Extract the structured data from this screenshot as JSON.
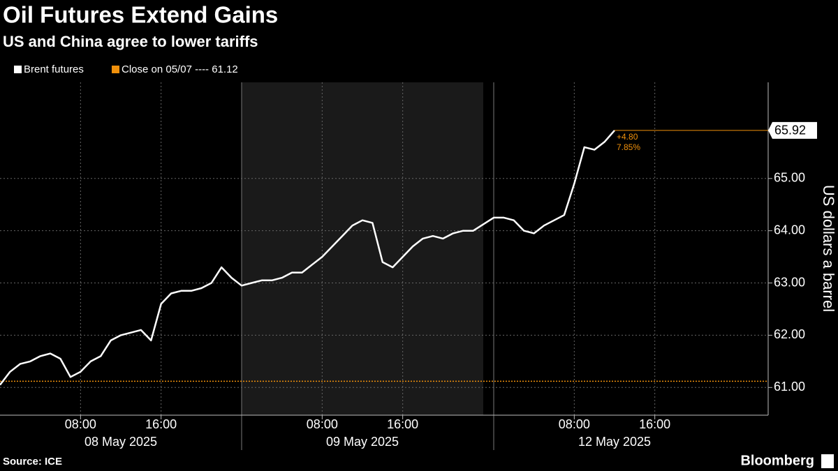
{
  "chart_data": {
    "type": "line",
    "title": "Oil Futures Extend Gains",
    "subtitle": "US and China agree to lower tariffs",
    "y_label": "US dollars a barrel",
    "source": "Source: ICE",
    "brand": "Bloomberg",
    "x": [
      "2025-05-08 00:00",
      "2025-05-08 01:00",
      "2025-05-08 02:00",
      "2025-05-08 03:00",
      "2025-05-08 04:00",
      "2025-05-08 05:00",
      "2025-05-08 06:00",
      "2025-05-08 07:00",
      "2025-05-08 08:00",
      "2025-05-08 09:00",
      "2025-05-08 10:00",
      "2025-05-08 11:00",
      "2025-05-08 12:00",
      "2025-05-08 13:00",
      "2025-05-08 14:00",
      "2025-05-08 15:00",
      "2025-05-08 16:00",
      "2025-05-08 17:00",
      "2025-05-08 18:00",
      "2025-05-08 19:00",
      "2025-05-08 20:00",
      "2025-05-08 21:00",
      "2025-05-08 22:00",
      "2025-05-08 23:00",
      "2025-05-09 00:00",
      "2025-05-09 01:00",
      "2025-05-09 02:00",
      "2025-05-09 03:00",
      "2025-05-09 04:00",
      "2025-05-09 05:00",
      "2025-05-09 06:00",
      "2025-05-09 07:00",
      "2025-05-09 08:00",
      "2025-05-09 09:00",
      "2025-05-09 10:00",
      "2025-05-09 11:00",
      "2025-05-09 12:00",
      "2025-05-09 13:00",
      "2025-05-09 14:00",
      "2025-05-09 15:00",
      "2025-05-09 16:00",
      "2025-05-09 17:00",
      "2025-05-09 18:00",
      "2025-05-09 19:00",
      "2025-05-09 20:00",
      "2025-05-09 21:00",
      "2025-05-09 22:00",
      "2025-05-09 23:00",
      "2025-05-12 00:00",
      "2025-05-12 01:00",
      "2025-05-12 02:00",
      "2025-05-12 03:00",
      "2025-05-12 04:00",
      "2025-05-12 05:00",
      "2025-05-12 06:00",
      "2025-05-12 07:00",
      "2025-05-12 08:00",
      "2025-05-12 09:00",
      "2025-05-12 10:00",
      "2025-05-12 11:00",
      "2025-05-12 12:00"
    ],
    "series": [
      {
        "name": "Brent futures",
        "color": "#ffffff",
        "values": [
          61.05,
          61.3,
          61.45,
          61.5,
          61.6,
          61.65,
          61.55,
          61.2,
          61.3,
          61.5,
          61.6,
          61.9,
          62.0,
          62.05,
          62.1,
          61.9,
          62.6,
          62.8,
          62.85,
          62.85,
          62.9,
          63.0,
          63.3,
          63.1,
          62.95,
          63.0,
          63.05,
          63.05,
          63.1,
          63.2,
          63.2,
          63.35,
          63.5,
          63.7,
          63.9,
          64.1,
          64.2,
          64.15,
          63.4,
          63.3,
          63.5,
          63.7,
          63.85,
          63.9,
          63.85,
          63.95,
          64.0,
          64.0,
          64.25,
          64.25,
          64.2,
          64.0,
          63.95,
          64.1,
          64.2,
          64.3,
          64.9,
          65.6,
          65.55,
          65.7,
          65.92
        ]
      }
    ],
    "reference": {
      "label": "Close on 05/07 ---- 61.12",
      "value": 61.12,
      "color": "#f0900b"
    },
    "annotations": [
      "+4.80",
      "7.85%"
    ],
    "ylim": [
      60.47,
      66.84
    ],
    "yticks": [
      {
        "value": 61,
        "label": "61.00"
      },
      {
        "value": 62,
        "label": "62.00"
      },
      {
        "value": 63,
        "label": "63.00"
      },
      {
        "value": 64,
        "label": "64.00"
      },
      {
        "value": 65,
        "label": "65.00"
      }
    ],
    "xticks": [
      {
        "value": "2025-05-08 08:00",
        "label": "08:00"
      },
      {
        "value": "2025-05-08 16:00",
        "label": "16:00"
      },
      {
        "value": "2025-05-09 08:00",
        "label": "08:00"
      },
      {
        "value": "2025-05-09 16:00",
        "label": "16:00"
      },
      {
        "value": "2025-05-12 08:00",
        "label": "08:00"
      },
      {
        "value": "2025-05-12 16:00",
        "label": "16:00"
      }
    ],
    "days": [
      {
        "value": "2025-05-08",
        "label": "08 May 2025"
      },
      {
        "value": "2025-05-09",
        "label": "09 May 2025"
      },
      {
        "value": "2025-05-12",
        "label": "12 May 2025"
      }
    ],
    "grid": true
  }
}
